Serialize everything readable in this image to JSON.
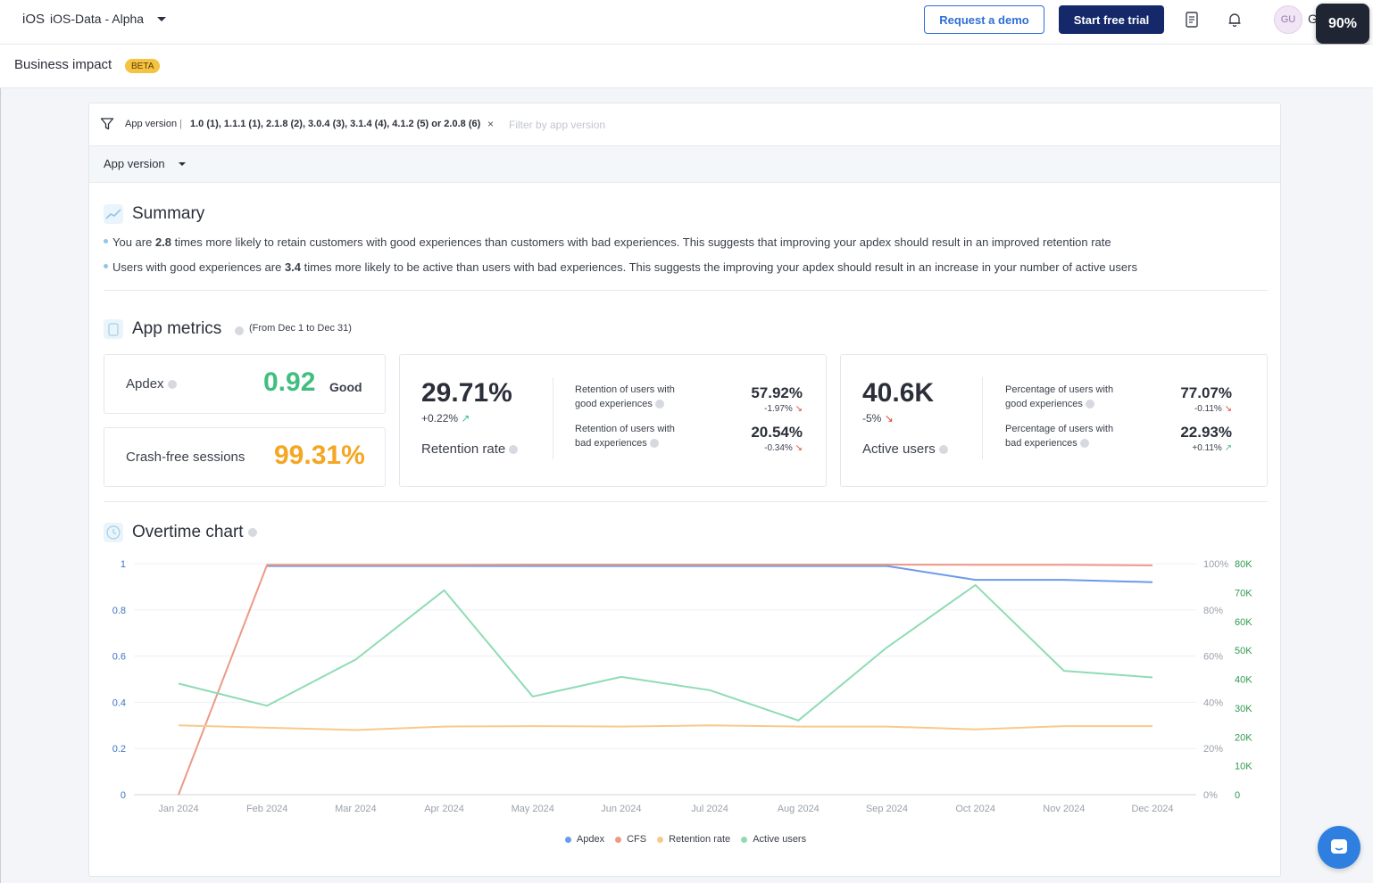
{
  "topbar": {
    "platform": "iOS",
    "app_name": "iOS-Data - Alpha",
    "request_demo": "Request a demo",
    "start_trial": "Start free trial",
    "avatar": "GU",
    "avatar_extra": "G",
    "zoom": "90%"
  },
  "page": {
    "title": "Business impact",
    "badge": "BETA"
  },
  "filter": {
    "key": "App version",
    "separator": "|",
    "value": "1.0 (1), 1.1.1 (1), 2.1.8 (2), 3.0.4 (3), 3.1.4 (4), 4.1.2 (5) or 2.0.8 (6)",
    "remove": "×",
    "placeholder": "Filter by app version",
    "group_by": "App version"
  },
  "summary": {
    "title": "Summary",
    "b1_pre": "You are ",
    "b1_val": "2.8",
    "b1_post": " times more likely to retain customers with good experiences than customers with bad experiences. This suggests that improving your apdex should result in an improved retention rate",
    "b2_pre": "Users with good experiences are ",
    "b2_val": "3.4",
    "b2_post": " times more likely to be active than users with bad experiences. This suggests the improving your apdex should result in an increase in your number of active users"
  },
  "metrics": {
    "title": "App metrics",
    "range": "(From Dec 1 to Dec 31)",
    "apdex": {
      "label": "Apdex",
      "value": "0.92",
      "rating": "Good"
    },
    "cfs": {
      "label": "Crash-free sessions",
      "value": "99.31%"
    },
    "retention": {
      "value": "29.71%",
      "delta": "+0.22%",
      "label": "Retention rate",
      "good_label_1": "Retention of users with",
      "good_label_2": "good experiences",
      "good_value": "57.92%",
      "good_delta": "-1.97%",
      "bad_label_1": "Retention of users with",
      "bad_label_2": "bad experiences",
      "bad_value": "20.54%",
      "bad_delta": "-0.34%"
    },
    "active": {
      "value": "40.6K",
      "delta": "-5%",
      "label": "Active users",
      "good_label_1": "Percentage of users with",
      "good_label_2": "good experiences",
      "good_value": "77.07%",
      "good_delta": "-0.11%",
      "bad_label_1": "Percentage of users with",
      "bad_label_2": "bad experiences",
      "bad_value": "22.93%",
      "bad_delta": "+0.11%"
    },
    "arrow_up": "↗",
    "arrow_down": "↘"
  },
  "chart_section": {
    "title": "Overtime chart"
  },
  "chart_data": {
    "type": "line",
    "x": [
      "Jan 2024",
      "Feb 2024",
      "Mar 2024",
      "Apr 2024",
      "May 2024",
      "Jun 2024",
      "Jul 2024",
      "Aug 2024",
      "Sep 2024",
      "Oct 2024",
      "Nov 2024",
      "Dec 2024"
    ],
    "y_left_ticks": [
      "0",
      "0.2",
      "0.4",
      "0.6",
      "0.8",
      "1"
    ],
    "y_pct_ticks": [
      "0%",
      "20%",
      "40%",
      "60%",
      "80%",
      "100%"
    ],
    "y_right_ticks": [
      "0",
      "10K",
      "20K",
      "30K",
      "40K",
      "50K",
      "60K",
      "70K",
      "80K"
    ],
    "ylim_left": [
      0,
      1
    ],
    "ylim_pct": [
      0,
      100
    ],
    "ylim_right": [
      0,
      80000
    ],
    "series": [
      {
        "name": "Apdex",
        "axis": "left",
        "color": "#6b9be8",
        "values": [
          null,
          0.99,
          0.99,
          0.99,
          0.99,
          0.99,
          0.99,
          0.99,
          0.99,
          0.93,
          0.93,
          0.92
        ]
      },
      {
        "name": "CFS",
        "axis": "pct",
        "color": "#ec9a86",
        "values": [
          0,
          99.5,
          99.5,
          99.5,
          99.6,
          99.6,
          99.6,
          99.6,
          99.6,
          99.5,
          99.5,
          99.3
        ]
      },
      {
        "name": "Retention rate",
        "axis": "pct",
        "color": "#f7c98c",
        "values": [
          30,
          29,
          28,
          29.5,
          29.7,
          29.5,
          30,
          29.5,
          29.5,
          28.3,
          29.7,
          29.7
        ]
      },
      {
        "name": "Active users",
        "axis": "right",
        "color": "#8fdcb4",
        "values": [
          38500,
          30800,
          46800,
          70800,
          34000,
          40800,
          36200,
          25700,
          51000,
          72600,
          42900,
          40600
        ]
      }
    ],
    "grid": true,
    "legend": "bottom"
  },
  "colors": {
    "good": "#3fbf7f",
    "warn": "#f5a623",
    "dark_text": "#2b2f3a",
    "axis_blue": "#3e74c9",
    "axis_green": "#2f9a4f",
    "axis_grey": "#9aa0ab"
  }
}
